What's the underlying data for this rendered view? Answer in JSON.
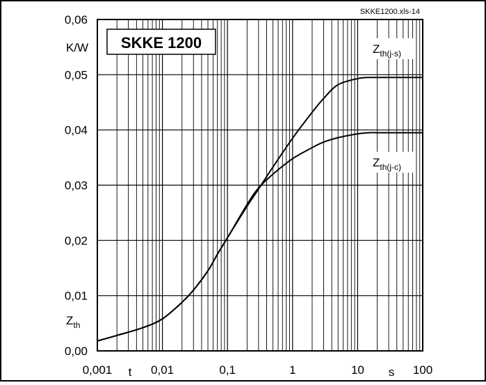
{
  "file_tag": "SKKE1200.xls-14",
  "chart_data": {
    "type": "line",
    "title": "SKKE 1200",
    "x_scale": "log",
    "xlim": [
      0.001,
      100
    ],
    "ylim": [
      0,
      0.06
    ],
    "grid": true,
    "x_tick_labels": [
      "0,001",
      "0,01",
      "0,1",
      "1",
      "10",
      "100"
    ],
    "y_tick_labels": [
      "0,00",
      "0,01",
      "0,02",
      "0,03",
      "0,04",
      "0,05",
      "0,06"
    ],
    "x_axis_symbol": "t",
    "x_axis_unit": "s",
    "y_axis_unit": "K/W",
    "y_axis_symbol": {
      "main": "Z",
      "sub": "th"
    },
    "series": [
      {
        "name": "Zth(j-s)",
        "label_main": "Z",
        "label_sub": "th(j-s)",
        "x": [
          0.001,
          0.002,
          0.005,
          0.01,
          0.02,
          0.03,
          0.05,
          0.07,
          0.1,
          0.2,
          0.3,
          0.5,
          1,
          2,
          3,
          5,
          10,
          15,
          20,
          50,
          100
        ],
        "y": [
          0.0018,
          0.0028,
          0.0042,
          0.0058,
          0.0088,
          0.011,
          0.0145,
          0.0175,
          0.0205,
          0.0262,
          0.0293,
          0.0333,
          0.0385,
          0.0432,
          0.0457,
          0.0482,
          0.0493,
          0.0495,
          0.0495,
          0.0495,
          0.0495
        ]
      },
      {
        "name": "Zth(j-c)",
        "label_main": "Z",
        "label_sub": "th(j-c)",
        "x": [
          0.001,
          0.002,
          0.005,
          0.01,
          0.02,
          0.03,
          0.05,
          0.07,
          0.1,
          0.2,
          0.3,
          0.5,
          1,
          2,
          3,
          5,
          10,
          15,
          20,
          50,
          100
        ],
        "y": [
          0.0018,
          0.0028,
          0.0042,
          0.0058,
          0.0088,
          0.011,
          0.0145,
          0.0175,
          0.0205,
          0.0265,
          0.0295,
          0.032,
          0.0348,
          0.0368,
          0.0378,
          0.0386,
          0.0393,
          0.0395,
          0.0395,
          0.0395,
          0.0395
        ]
      }
    ]
  }
}
